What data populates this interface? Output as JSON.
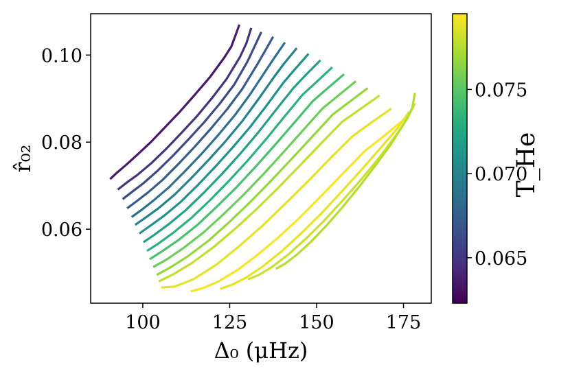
{
  "chart_data": {
    "type": "line",
    "title": "",
    "xlabel": "Δ₀ (μHz)",
    "ylabel": "r̂₀₂",
    "xlim": [
      85,
      183
    ],
    "ylim": [
      0.043,
      0.1095
    ],
    "xticks": [
      100,
      125,
      150,
      175
    ],
    "xtick_labels": [
      "100",
      "125",
      "150",
      "175"
    ],
    "yticks": [
      0.06,
      0.08,
      0.1
    ],
    "ytick_labels": [
      "0.06",
      "0.08",
      "0.10"
    ],
    "grid": false,
    "colorbar": {
      "label": "T_He",
      "range": [
        0.0623,
        0.0795
      ],
      "ticks": [
        0.065,
        0.07,
        0.075
      ],
      "tick_labels": [
        "0.065",
        "0.070",
        "0.075"
      ],
      "colormap": "viridis"
    },
    "series": [
      {
        "T_He": 0.0635,
        "x": [
          90.6,
          92.6,
          95.1,
          98.3,
          102.3,
          106.5,
          110.8,
          115.1,
          119.4,
          123.5,
          125.5,
          127.8
        ],
        "y": [
          0.0715,
          0.073,
          0.0747,
          0.077,
          0.08,
          0.0835,
          0.0871,
          0.091,
          0.095,
          0.0995,
          0.102,
          0.107
        ]
      },
      {
        "T_He": 0.0648,
        "x": [
          92.8,
          95.4,
          98.5,
          102.5,
          106.8,
          111.1,
          115.5,
          119.9,
          124.1,
          128.0,
          129.8,
          131.2
        ],
        "y": [
          0.0691,
          0.0707,
          0.0725,
          0.0752,
          0.0785,
          0.0821,
          0.0859,
          0.0901,
          0.0945,
          0.0996,
          0.1027,
          0.1062
        ]
      },
      {
        "T_He": 0.0661,
        "x": [
          94.2,
          96.8,
          100.1,
          104.1,
          108.6,
          113.0,
          117.6,
          122.1,
          126.3,
          130.1,
          132.0,
          134.1
        ],
        "y": [
          0.0669,
          0.0685,
          0.0705,
          0.0733,
          0.0768,
          0.0805,
          0.0845,
          0.0888,
          0.0932,
          0.0985,
          0.1017,
          0.1053
        ]
      },
      {
        "T_He": 0.0673,
        "x": [
          95.5,
          98.2,
          101.6,
          105.8,
          110.3,
          114.9,
          119.6,
          124.3,
          128.6,
          132.6,
          134.8,
          137.5
        ],
        "y": [
          0.0648,
          0.0664,
          0.0685,
          0.0714,
          0.075,
          0.0789,
          0.0831,
          0.0876,
          0.0922,
          0.0974,
          0.1004,
          0.1042
        ]
      },
      {
        "T_He": 0.0685,
        "x": [
          96.8,
          99.6,
          103.1,
          107.5,
          112.1,
          116.9,
          121.7,
          126.5,
          130.9,
          135.2,
          137.7,
          140.9
        ],
        "y": [
          0.0628,
          0.0644,
          0.0666,
          0.0696,
          0.0733,
          0.0773,
          0.0816,
          0.0862,
          0.091,
          0.0962,
          0.0992,
          0.1029
        ]
      },
      {
        "T_He": 0.0697,
        "x": [
          97.8,
          100.7,
          104.5,
          109.1,
          113.9,
          118.8,
          123.8,
          128.7,
          133.2,
          137.8,
          140.6,
          144.3
        ],
        "y": [
          0.061,
          0.0626,
          0.0648,
          0.0679,
          0.0717,
          0.0758,
          0.0802,
          0.0849,
          0.0898,
          0.095,
          0.098,
          0.1016
        ]
      },
      {
        "T_He": 0.0709,
        "x": [
          99.0,
          102.0,
          106.0,
          110.8,
          115.8,
          120.8,
          125.9,
          131.0,
          135.7,
          140.5,
          143.6,
          147.7
        ],
        "y": [
          0.059,
          0.0607,
          0.063,
          0.0662,
          0.0701,
          0.0743,
          0.0788,
          0.0836,
          0.0885,
          0.0937,
          0.0966,
          0.1003
        ]
      },
      {
        "T_He": 0.072,
        "x": [
          100.2,
          103.3,
          107.4,
          112.4,
          117.6,
          122.8,
          128.0,
          133.2,
          138.1,
          143.2,
          146.6,
          151.1
        ],
        "y": [
          0.057,
          0.0587,
          0.0611,
          0.0644,
          0.0684,
          0.0727,
          0.0773,
          0.0822,
          0.0872,
          0.0923,
          0.0952,
          0.0988
        ]
      },
      {
        "T_He": 0.0732,
        "x": [
          101.2,
          104.5,
          108.8,
          114.0,
          119.4,
          124.8,
          130.2,
          135.6,
          140.7,
          146.0,
          149.8,
          154.5
        ],
        "y": [
          0.055,
          0.0567,
          0.0592,
          0.0626,
          0.0667,
          0.0711,
          0.0758,
          0.0808,
          0.0858,
          0.0909,
          0.0937,
          0.0972
        ]
      },
      {
        "T_He": 0.0744,
        "x": [
          102.0,
          105.5,
          110.1,
          115.6,
          121.2,
          126.8,
          132.4,
          138.0,
          143.4,
          148.9,
          152.9,
          157.9
        ],
        "y": [
          0.0531,
          0.0549,
          0.0574,
          0.0609,
          0.0651,
          0.0695,
          0.0743,
          0.0793,
          0.0843,
          0.0894,
          0.0922,
          0.0956
        ]
      },
      {
        "T_He": 0.0756,
        "x": [
          103.0,
          106.8,
          111.6,
          117.4,
          123.2,
          129.0,
          134.8,
          140.6,
          146.2,
          151.8,
          156.1,
          161.3
        ],
        "y": [
          0.0513,
          0.053,
          0.0556,
          0.0592,
          0.0634,
          0.0679,
          0.0727,
          0.0778,
          0.0828,
          0.0878,
          0.0906,
          0.094
        ]
      },
      {
        "T_He": 0.0767,
        "x": [
          104.0,
          107.9,
          113.0,
          119.0,
          125.0,
          131.0,
          137.0,
          143.0,
          148.8,
          154.6,
          159.2,
          164.7
        ],
        "y": [
          0.0495,
          0.0512,
          0.0538,
          0.0574,
          0.0617,
          0.0663,
          0.0712,
          0.0763,
          0.0813,
          0.0863,
          0.0891,
          0.0924
        ]
      },
      {
        "T_He": 0.0779,
        "x": [
          104.6,
          108.7,
          114.1,
          120.4,
          126.7,
          133.0,
          139.2,
          145.4,
          151.4,
          157.4,
          162.4,
          168.1
        ],
        "y": [
          0.048,
          0.0496,
          0.0522,
          0.0559,
          0.0602,
          0.0648,
          0.0697,
          0.0748,
          0.0798,
          0.0847,
          0.0875,
          0.0907
        ]
      },
      {
        "T_He": 0.0788,
        "x": [
          105.3,
          109.1,
          114.6,
          121.3,
          127.9,
          134.6,
          141.2,
          147.8,
          154.1,
          160.4,
          165.8,
          171.5
        ],
        "y": [
          0.0466,
          0.0468,
          0.0485,
          0.0519,
          0.0562,
          0.0609,
          0.066,
          0.0712,
          0.0764,
          0.0814,
          0.0845,
          0.0877
        ]
      },
      {
        "T_He": 0.0793,
        "x": [
          113.8,
          117.4,
          121.8,
          127.2,
          133.0,
          139.0,
          145.2,
          151.4,
          157.6,
          163.8,
          169.5,
          175.0
        ],
        "y": [
          0.0457,
          0.0465,
          0.048,
          0.0506,
          0.0541,
          0.0581,
          0.0627,
          0.0677,
          0.0728,
          0.0779,
          0.0815,
          0.0851
        ]
      },
      {
        "T_He": 0.0789,
        "x": [
          122.3,
          125.6,
          129.8,
          134.8,
          140.2,
          145.8,
          151.6,
          157.4,
          163.3,
          169.0,
          173.3,
          176.7
        ],
        "y": [
          0.0463,
          0.0472,
          0.0489,
          0.0516,
          0.0551,
          0.0592,
          0.0638,
          0.0688,
          0.074,
          0.0792,
          0.0832,
          0.087
        ]
      },
      {
        "T_He": 0.0781,
        "x": [
          130.3,
          133.4,
          137.3,
          141.9,
          146.9,
          152.1,
          157.4,
          162.8,
          168.0,
          172.8,
          176.0,
          178.3
        ],
        "y": [
          0.0485,
          0.0495,
          0.0514,
          0.0542,
          0.0578,
          0.0619,
          0.0665,
          0.0714,
          0.0764,
          0.0815,
          0.0853,
          0.0889
        ]
      },
      {
        "T_He": 0.0775,
        "x": [
          138.3,
          141.0,
          144.4,
          148.5,
          152.9,
          157.5,
          162.2,
          166.9,
          171.3,
          175.2,
          177.5,
          178.3
        ],
        "y": [
          0.0509,
          0.0521,
          0.0542,
          0.0572,
          0.0609,
          0.0651,
          0.0697,
          0.0746,
          0.0794,
          0.0843,
          0.0878,
          0.0913
        ]
      }
    ]
  }
}
